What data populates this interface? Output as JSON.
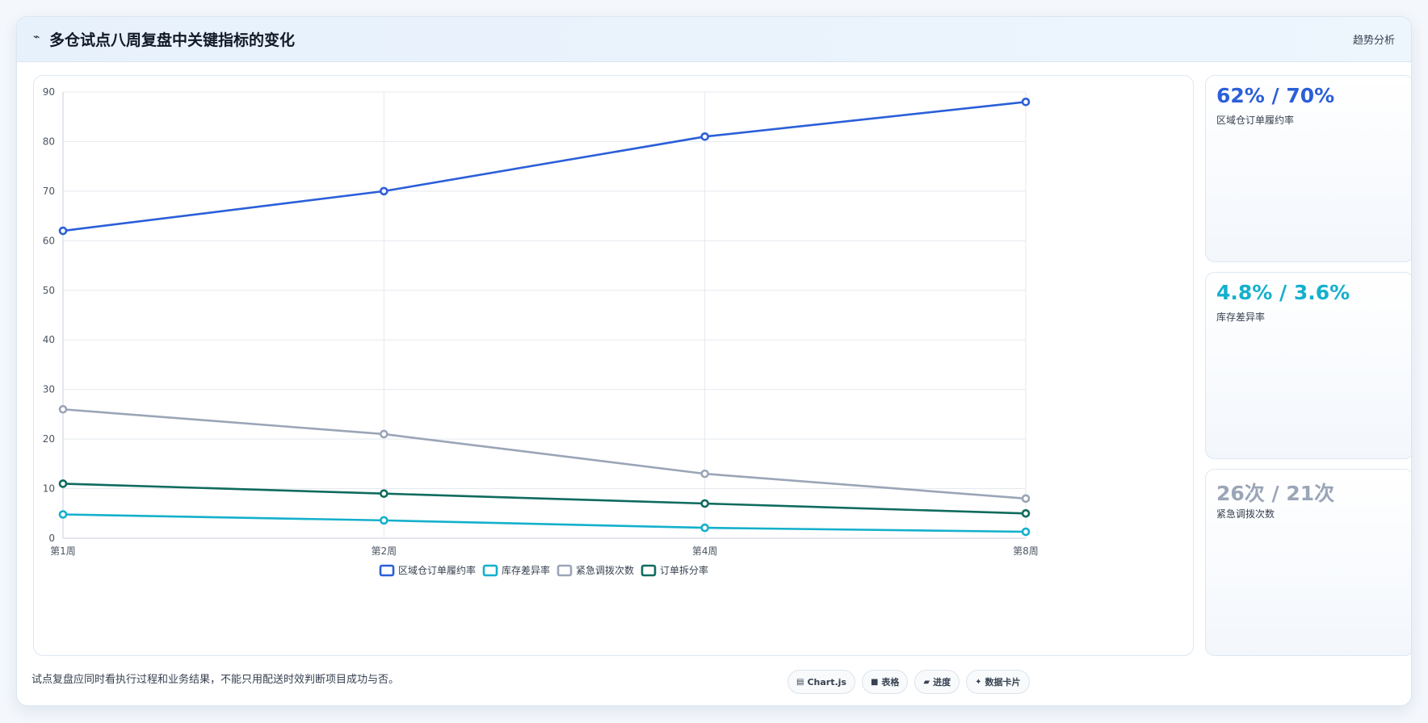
{
  "header": {
    "title": "多仓试点八周复盘中关键指标的变化",
    "trend_label": "趋势分析"
  },
  "chart_data": {
    "type": "line",
    "categories": [
      "第1周",
      "第2周",
      "第4周",
      "第8周"
    ],
    "ylim": [
      0,
      90
    ],
    "yticks": [
      0,
      10,
      20,
      30,
      40,
      50,
      60,
      70,
      80,
      90
    ],
    "grid": true,
    "legend_position": "bottom",
    "series": [
      {
        "name": "区域仓订单履约率",
        "color": "#2b5fd9",
        "values": [
          62,
          70,
          81,
          88
        ]
      },
      {
        "name": "库存差异率",
        "color": "#14b0cc",
        "values": [
          4.8,
          3.6,
          2.1,
          1.3
        ]
      },
      {
        "name": "紧急调拨次数",
        "color": "#9aa5b7",
        "values": [
          26,
          21,
          13,
          8
        ]
      },
      {
        "name": "订单拆分率",
        "color": "#0f6b5e",
        "values": [
          11,
          9,
          7,
          5
        ]
      }
    ]
  },
  "stats": [
    {
      "value": "62% / 70%",
      "label": "区域仓订单履约率",
      "color": "#2b5fd9"
    },
    {
      "value": "4.8% / 3.6%",
      "label": "库存差异率",
      "color": "#14b0cc"
    },
    {
      "value": "26次 / 21次",
      "label": "紧急调拨次数",
      "color": "#9aa5b7"
    }
  ],
  "footnote": "试点复盘应同时看执行过程和业务结果，不能只用配送时效判断项目成功与否。",
  "pills": [
    {
      "label": "Chart.js",
      "icon": "chart-icon",
      "glyph": "▤"
    },
    {
      "label": "表格",
      "icon": "table-icon",
      "glyph": "■"
    },
    {
      "label": "进度",
      "icon": "progress-icon",
      "glyph": "▰"
    },
    {
      "label": "数据卡片",
      "icon": "card-icon",
      "glyph": "✦"
    }
  ]
}
